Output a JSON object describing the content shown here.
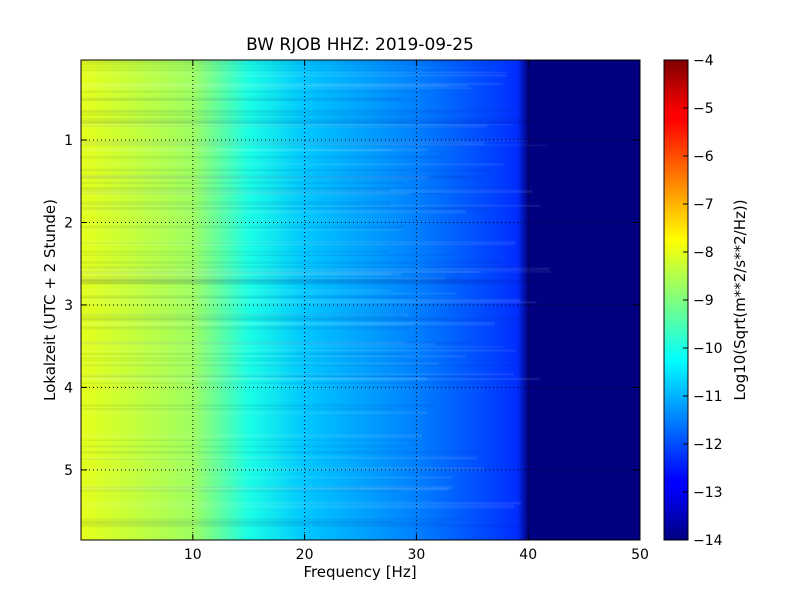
{
  "chart_data": {
    "type": "heatmap",
    "title": "BW RJOB HHZ: 2019-09-25",
    "xlabel": "Frequency [Hz]",
    "ylabel": "Lokalzeit (UTC + 2 Stunde)",
    "xlim": [
      0,
      50
    ],
    "ylim": [
      5.85,
      0.03
    ],
    "x_ticks": [
      10,
      20,
      30,
      40,
      50
    ],
    "y_ticks": [
      1,
      2,
      3,
      4,
      5
    ],
    "grid": true,
    "colormap": "jet",
    "colorbar": {
      "label": "Log10(Sqrt(m**2/s**2/Hz))",
      "range": [
        -14,
        -4
      ],
      "ticks": [
        -4,
        -5,
        -6,
        -7,
        -8,
        -9,
        -10,
        -11,
        -12,
        -13,
        -14
      ]
    },
    "spectral_profile": [
      {
        "freq_hz": 0,
        "value": -8.0
      },
      {
        "freq_hz": 10,
        "value": -8.7
      },
      {
        "freq_hz": 15,
        "value": -10.0
      },
      {
        "freq_hz": 20,
        "value": -10.8
      },
      {
        "freq_hz": 30,
        "value": -11.5
      },
      {
        "freq_hz": 39,
        "value": -12.3
      },
      {
        "freq_hz": 40,
        "value": -14.0
      },
      {
        "freq_hz": 50,
        "value": -14.0
      }
    ]
  }
}
